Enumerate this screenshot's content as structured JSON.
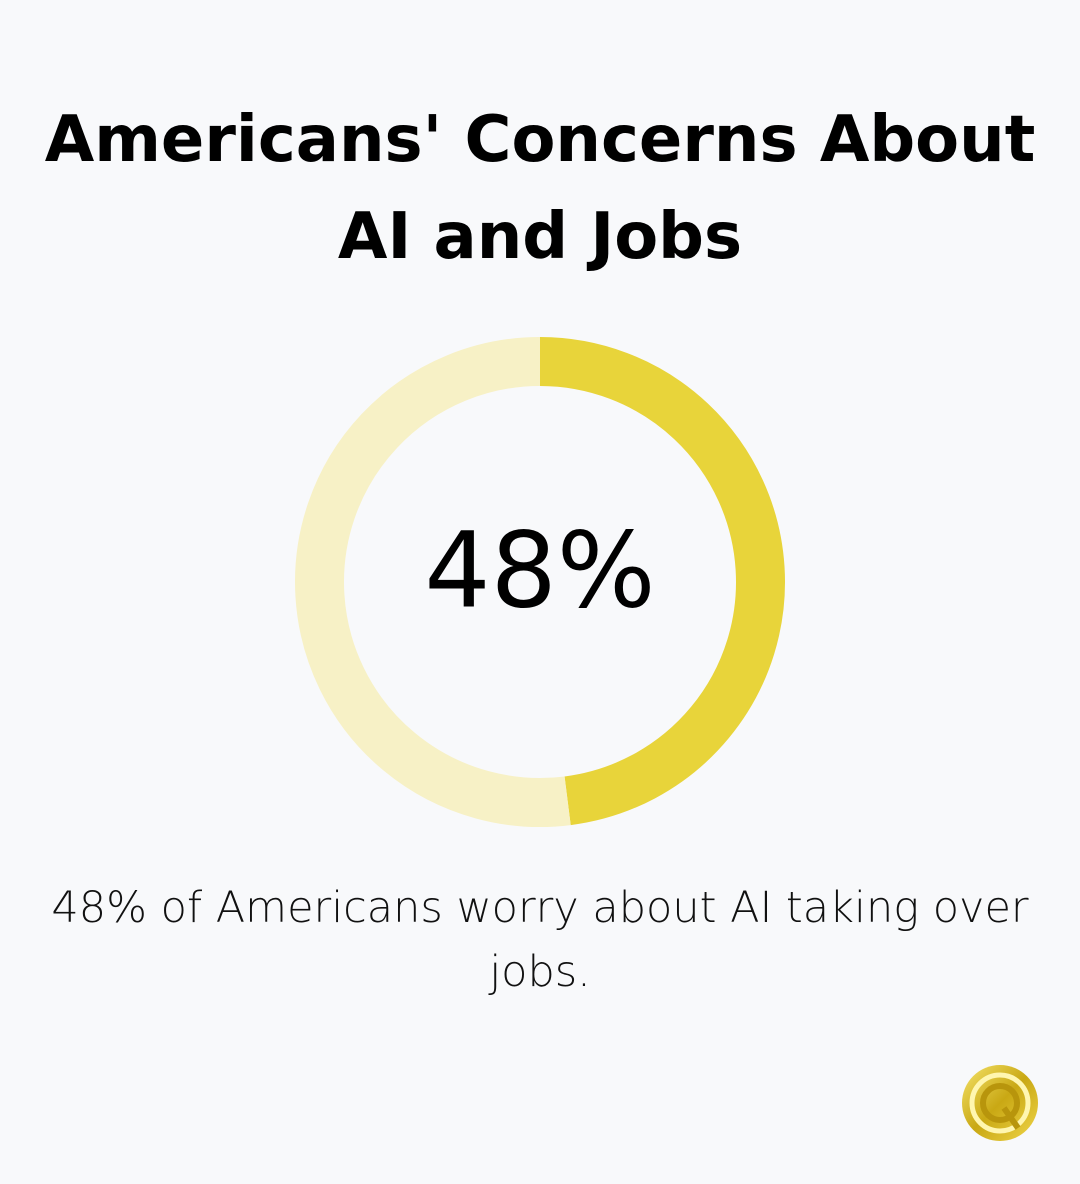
{
  "chart_data": {
    "type": "donut",
    "title": "Americans' Concerns About AI and Jobs",
    "categories": [
      "Worry about AI taking over jobs",
      null
    ],
    "values": [
      48,
      52
    ],
    "value_labels": [
      "48%",
      null
    ],
    "colors": [
      "#e8d43a",
      "#f7f1c6"
    ],
    "caption": "48% of Americans worry about AI taking over jobs."
  }
}
